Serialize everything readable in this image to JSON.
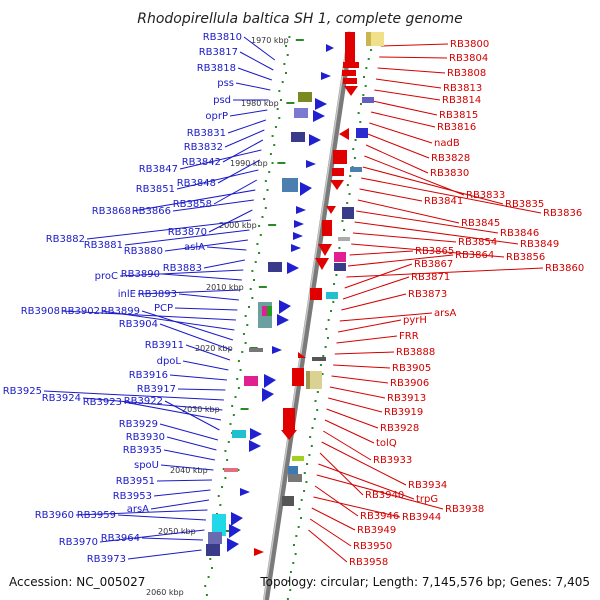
{
  "title": "Rhodopirellula baltica SH 1, complete genome",
  "accession": "Accession: NC_005027",
  "summary": "Topology: circular; Length: 7,145,576 bp; Genes: 7,405",
  "colors": {
    "left_label": "#1a1ac8",
    "right_label": "#d40000",
    "backbone": "#888888",
    "gc_dots": "#2a8a2a"
  },
  "ticks": [
    "1970 kbp",
    "1980 kbp",
    "1990 kbp",
    "2000 kbp",
    "2010 kbp",
    "2020 kbp",
    "2030 kbp",
    "2040 kbp",
    "2050 kbp",
    "2060 kbp"
  ],
  "left_labels": [
    "RB3810",
    "RB3817",
    "RB3818",
    "pss",
    "psd",
    "oprP",
    "RB3831",
    "RB3832",
    "RB3842",
    "RB3847",
    "RB3848",
    "RB3851",
    "RB3858",
    "RB3868",
    "RB3866",
    "RB3870",
    "RB3882",
    "RB3881",
    "RB3880",
    "aslA",
    "RB3883",
    "proC",
    "RB3890",
    "inlE",
    "RB3893",
    "PCP",
    "RB3908",
    "RB3902",
    "RB3899",
    "RB3904",
    "RB3911",
    "dpoL",
    "RB3916",
    "RB3917",
    "RB3925",
    "RB3924",
    "RB3923",
    "RB3922",
    "RB3929",
    "RB3930",
    "RB3935",
    "spoU",
    "RB3951",
    "RB3953",
    "arsA",
    "RB3960",
    "RB3959",
    "RB3970",
    "RB3964",
    "RB3973"
  ],
  "right_labels": [
    "RB3800",
    "RB3804",
    "RB3808",
    "RB3813",
    "RB3814",
    "RB3815",
    "RB3816",
    "nadB",
    "RB3828",
    "RB3830",
    "RB3833",
    "RB3835",
    "RB3836",
    "RB3841",
    "RB3845",
    "RB3846",
    "RB3849",
    "RB3854",
    "RB3856",
    "RB3865",
    "RB3864",
    "RB3860",
    "RB3867",
    "RB3871",
    "RB3873",
    "arsA",
    "pyrH",
    "FRR",
    "RB3888",
    "RB3905",
    "RB3906",
    "RB3913",
    "RB3919",
    "RB3928",
    "tolQ",
    "RB3933",
    "RB3934",
    "RB3940",
    "trpG",
    "RB3938",
    "RB3946",
    "RB3944",
    "RB3949",
    "RB3950",
    "RB3958"
  ]
}
